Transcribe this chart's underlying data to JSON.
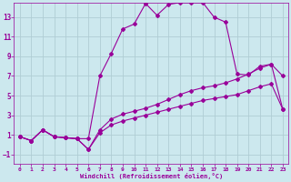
{
  "xlabel": "Windchill (Refroidissement éolien,°C)",
  "background_color": "#cce8ee",
  "line_color": "#990099",
  "grid_color": "#b0cdd4",
  "x_ticks": [
    0,
    1,
    2,
    3,
    4,
    5,
    6,
    7,
    8,
    9,
    10,
    11,
    12,
    13,
    14,
    15,
    16,
    17,
    18,
    19,
    20,
    21,
    22,
    23
  ],
  "y_ticks": [
    -1,
    1,
    3,
    5,
    7,
    9,
    11,
    13
  ],
  "xlim": [
    -0.5,
    23.5
  ],
  "ylim": [
    -2,
    14.5
  ],
  "series1_x": [
    0,
    1,
    2,
    3,
    4,
    5,
    6,
    7,
    8,
    9,
    10,
    11,
    12,
    13,
    14,
    15,
    16,
    17,
    18,
    19,
    20,
    21,
    22,
    23
  ],
  "series1_y": [
    0.8,
    0.4,
    1.5,
    0.8,
    0.7,
    0.6,
    0.6,
    7.0,
    9.3,
    11.8,
    12.3,
    14.4,
    13.2,
    14.3,
    14.5,
    14.5,
    14.5,
    13.0,
    12.5,
    7.2,
    7.1,
    8.0,
    8.2,
    7.0
  ],
  "series2_x": [
    0,
    1,
    2,
    3,
    4,
    5,
    6,
    7,
    8,
    9,
    10,
    11,
    12,
    13,
    14,
    15,
    16,
    17,
    18,
    19,
    20,
    21,
    22,
    23
  ],
  "series2_y": [
    0.8,
    0.4,
    1.5,
    0.8,
    0.7,
    0.6,
    -0.5,
    1.5,
    2.6,
    3.1,
    3.4,
    3.7,
    4.1,
    4.6,
    5.1,
    5.5,
    5.8,
    6.0,
    6.3,
    6.7,
    7.2,
    7.8,
    8.2,
    3.6
  ],
  "series3_x": [
    0,
    1,
    2,
    3,
    4,
    5,
    6,
    7,
    8,
    9,
    10,
    11,
    12,
    13,
    14,
    15,
    16,
    17,
    18,
    19,
    20,
    21,
    22,
    23
  ],
  "series3_y": [
    0.8,
    0.4,
    1.5,
    0.8,
    0.7,
    0.6,
    -0.5,
    1.2,
    2.0,
    2.4,
    2.7,
    3.0,
    3.3,
    3.6,
    3.9,
    4.2,
    4.5,
    4.7,
    4.9,
    5.1,
    5.5,
    5.9,
    6.2,
    3.6
  ]
}
